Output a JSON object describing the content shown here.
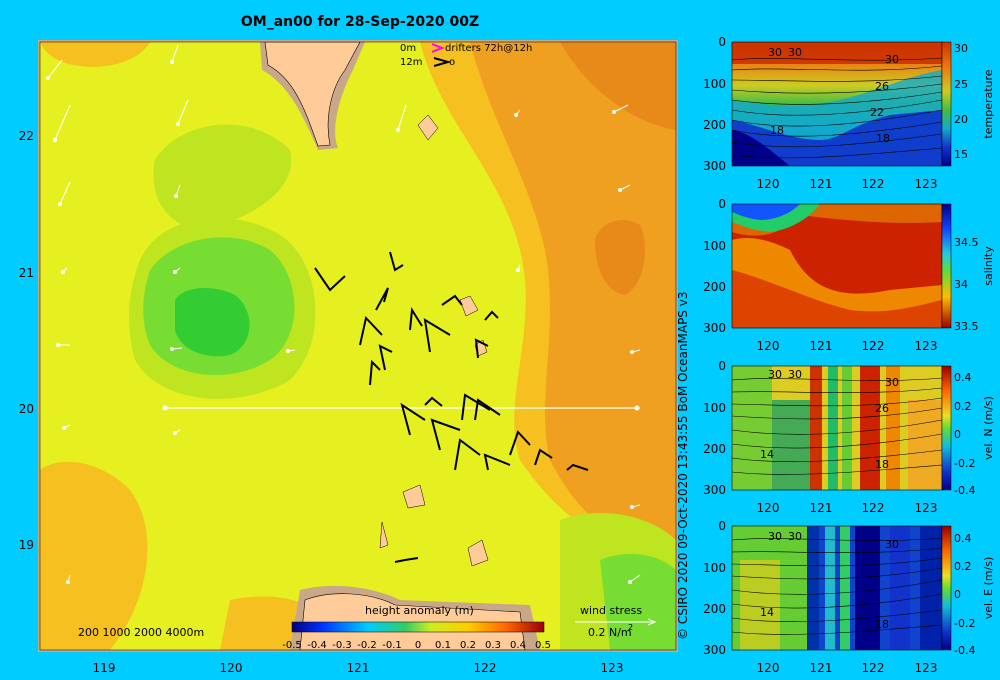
{
  "title": "OM_an00 for 28-Sep-2020 00Z",
  "map": {
    "lon_ticks": [
      "119",
      "120",
      "121",
      "122",
      "123"
    ],
    "lat_ticks": [
      "22",
      "21",
      "20",
      "19"
    ],
    "legend_drifters": "drifters 72h@12h",
    "legend_0m": "0m",
    "legend_12m": "12m",
    "legend_12m_label": "o",
    "depths_label": "200  1000  2000  4000m",
    "colorbar_label": "height anomaly (m)",
    "colorbar_ticks": [
      "-0.5",
      "-0.4",
      "-0.3",
      "-0.2",
      "-0.1",
      "0",
      "0.1",
      "0.2",
      "0.3",
      "0.4",
      "0.5"
    ],
    "wind_label": "wind stress",
    "wind_scale": "0.2 N/m",
    "wind_scale_exp": "2"
  },
  "copyright": "© CSIRO 2020  09-Oct-2020 13:43:55 BoM OceanMAPS v3",
  "panels": [
    {
      "name": "temperature",
      "xticks": [
        "120",
        "121",
        "122",
        "123"
      ],
      "yticks": [
        "0",
        "100",
        "200",
        "300"
      ],
      "cticks": [
        "30",
        "25",
        "20",
        "15"
      ],
      "contour_labels": [
        "30",
        "30",
        "30",
        "26",
        "22",
        "18",
        "18"
      ]
    },
    {
      "name": "salinity",
      "xticks": [
        "120",
        "121",
        "122",
        "123"
      ],
      "yticks": [
        "0",
        "100",
        "200",
        "300"
      ],
      "cticks": [
        "34.5",
        "34",
        "33.5"
      ],
      "contour_labels": []
    },
    {
      "name": "vel. N (m/s)",
      "xticks": [
        "120",
        "121",
        "122",
        "123"
      ],
      "yticks": [
        "0",
        "100",
        "200",
        "300"
      ],
      "cticks": [
        "0.4",
        "0.2",
        "0",
        "-0.2",
        "-0.4"
      ],
      "contour_labels": [
        "30",
        "30",
        "30",
        "26",
        "14",
        "18"
      ]
    },
    {
      "name": "vel. E (m/s)",
      "xticks": [
        "120",
        "121",
        "122",
        "123"
      ],
      "yticks": [
        "0",
        "100",
        "200",
        "300"
      ],
      "cticks": [
        "0.4",
        "0.2",
        "0",
        "-0.2",
        "-0.4"
      ],
      "contour_labels": [
        "30",
        "30",
        "30",
        "14",
        "18"
      ]
    }
  ],
  "colors": {
    "background": "#00ccff",
    "land": "#ffcc99",
    "shallow": "#c8a888"
  }
}
